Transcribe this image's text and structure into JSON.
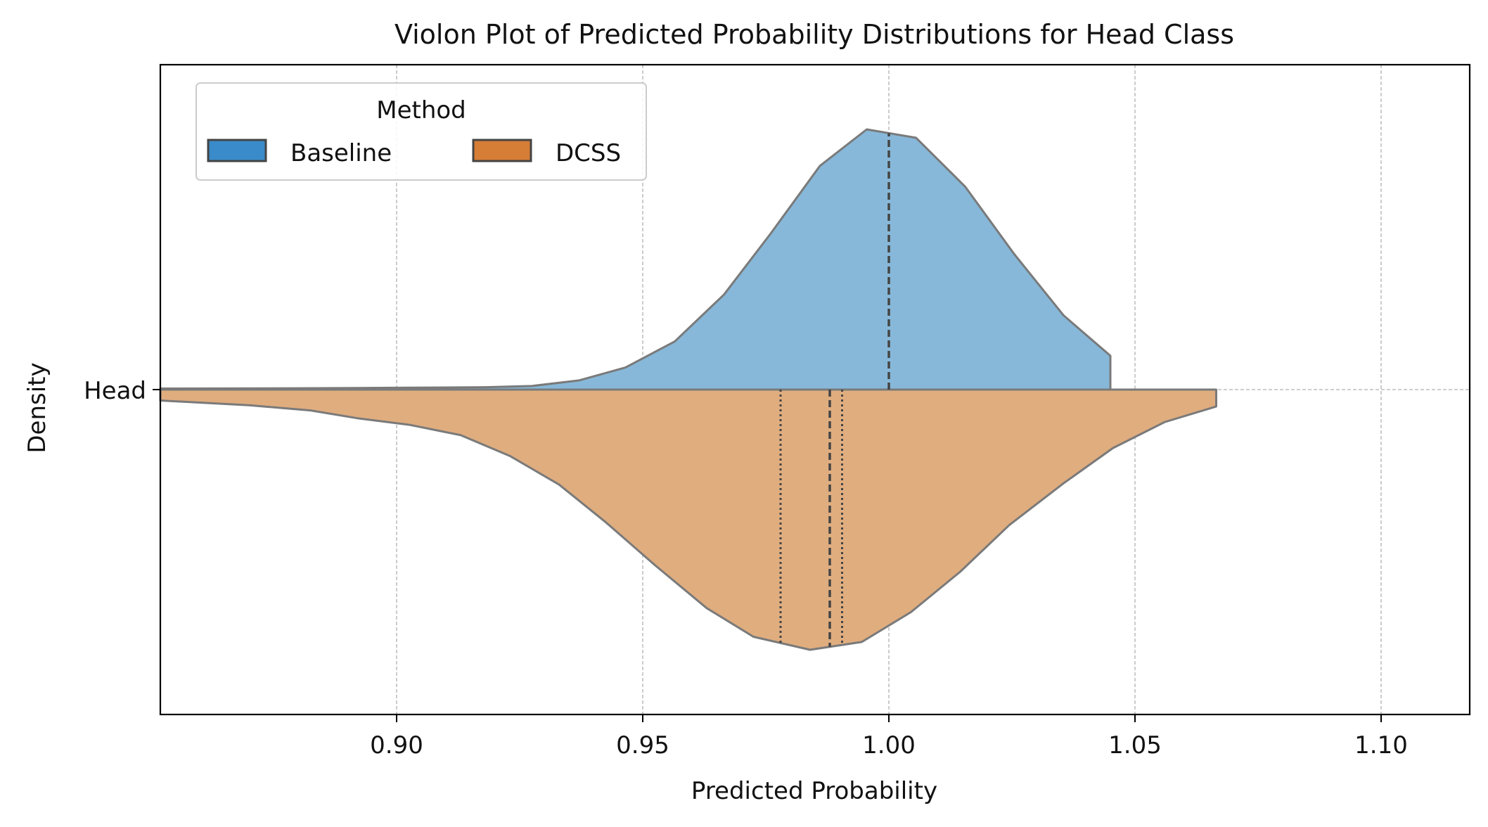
{
  "chart_data": {
    "type": "violin",
    "title": "Violon Plot of Predicted Probability Distributions for Head Class",
    "xlabel": "Predicted Probability",
    "ylabel": "Density",
    "category": "Head",
    "xlim": [
      0.852,
      1.118
    ],
    "xticks": [
      0.9,
      0.95,
      1.0,
      1.05,
      1.1
    ],
    "xtick_labels": [
      "0.90",
      "0.95",
      "1.00",
      "1.05",
      "1.10"
    ],
    "grid": true,
    "legend": {
      "title": "Method",
      "placement": "top-left",
      "entries": [
        "Baseline",
        "DCSS"
      ]
    },
    "colors": {
      "Baseline": "#3a8bc9",
      "DCSS": "#d67d36",
      "Baseline_fill": "#87b8d9",
      "DCSS_fill": "#e0ad7f",
      "outline": "#7a7a7a"
    },
    "series": [
      {
        "name": "Baseline",
        "side": "upper",
        "x": [
          0.852,
          0.88,
          0.9,
          0.918,
          0.9275,
          0.937,
          0.9465,
          0.9565,
          0.9665,
          0.976,
          0.986,
          0.9955,
          1.0055,
          1.0155,
          1.0255,
          1.0355,
          1.045,
          1.045
        ],
        "density": [
          0.004,
          0.005,
          0.007,
          0.009,
          0.014,
          0.035,
          0.085,
          0.185,
          0.365,
          0.6,
          0.86,
          1.0,
          0.968,
          0.78,
          0.52,
          0.285,
          0.13,
          0.0
        ],
        "median": 1.0,
        "quartiles": []
      },
      {
        "name": "DCSS",
        "side": "lower",
        "x": [
          0.852,
          0.87,
          0.8825,
          0.892,
          0.9025,
          0.913,
          0.923,
          0.933,
          0.9425,
          0.9525,
          0.963,
          0.9725,
          0.984,
          0.9945,
          1.0045,
          1.0145,
          1.0245,
          1.0355,
          1.0455,
          1.056,
          1.0665,
          1.0665
        ],
        "density": [
          0.042,
          0.06,
          0.08,
          0.11,
          0.135,
          0.175,
          0.255,
          0.365,
          0.51,
          0.675,
          0.84,
          0.95,
          1.0,
          0.97,
          0.855,
          0.7,
          0.52,
          0.36,
          0.225,
          0.125,
          0.065,
          0.0
        ],
        "median": 0.988,
        "quartiles": [
          0.978,
          0.9905
        ]
      }
    ]
  }
}
